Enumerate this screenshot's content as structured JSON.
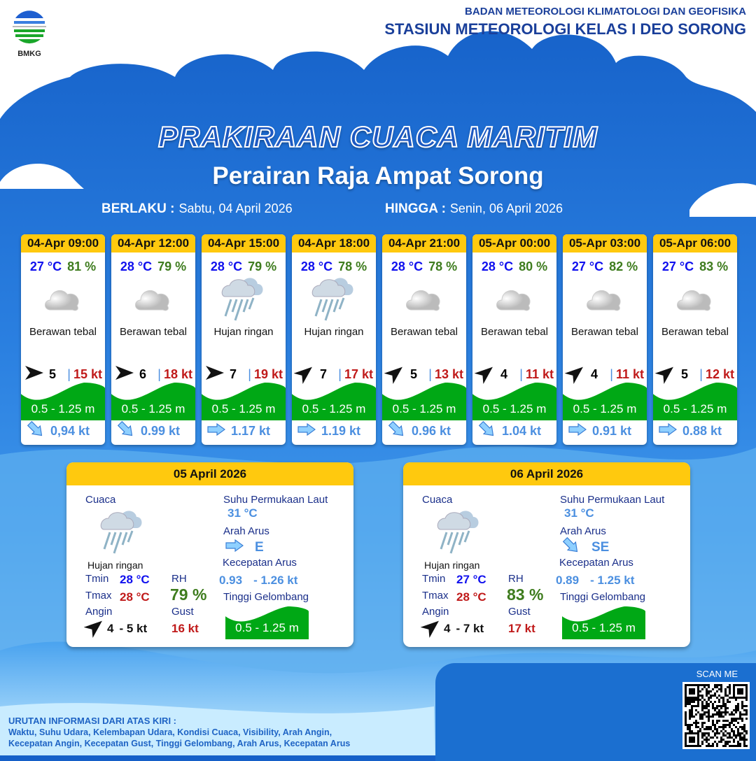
{
  "header": {
    "logo_text": "BMKG",
    "agency": "BADAN METEOROLOGI KLIMATOLOGI DAN GEOFISIKA",
    "station": "STASIUN METEOROLOGI KELAS I DEO SORONG"
  },
  "title": "PRAKIRAAN CUACA MARITIM",
  "subtitle": "Perairan Raja Ampat Sorong",
  "validity": {
    "from_label": "BERLAKU :",
    "from": "Sabtu, 04 April 2026",
    "to_label": "HINGGA :",
    "to": "Senin, 06 April 2026"
  },
  "colors": {
    "header_yellow": "#ffc90e",
    "temp": "#1010ee",
    "rh": "#3e7c1e",
    "gust": "#c01a1a",
    "wave": "#00a815",
    "current": "#4b8fe0"
  },
  "forecasts": [
    {
      "time": "04-Apr 09:00",
      "temp": "27 °C",
      "rh": "81 %",
      "icon": "cloudy-icon",
      "weather": "Berawan tebal",
      "wind_icon": "arrow-east",
      "wind": "5",
      "gust": "15 kt",
      "wave": "0.5 - 1.25 m",
      "current_icon": "arrow-southeast",
      "current": "0,94 kt"
    },
    {
      "time": "04-Apr 12:00",
      "temp": "28 °C",
      "rh": "79 %",
      "icon": "cloudy-icon",
      "weather": "Berawan tebal",
      "wind_icon": "arrow-east",
      "wind": "6",
      "gust": "18 kt",
      "wave": "0.5 - 1.25 m",
      "current_icon": "arrow-southeast",
      "current": "0.99 kt"
    },
    {
      "time": "04-Apr 15:00",
      "temp": "28 °C",
      "rh": "79 %",
      "icon": "rain-icon",
      "weather": "Hujan ringan",
      "wind_icon": "arrow-east",
      "wind": "7",
      "gust": "19 kt",
      "wave": "0.5 - 1.25 m",
      "current_icon": "arrow-east",
      "current": "1.17 kt"
    },
    {
      "time": "04-Apr 18:00",
      "temp": "28 °C",
      "rh": "78 %",
      "icon": "rain-icon",
      "weather": "Hujan ringan",
      "wind_icon": "arrow-northeast",
      "wind": "7",
      "gust": "17 kt",
      "wave": "0.5 - 1.25 m",
      "current_icon": "arrow-east",
      "current": "1.19 kt"
    },
    {
      "time": "04-Apr 21:00",
      "temp": "28 °C",
      "rh": "78 %",
      "icon": "cloudy-icon",
      "weather": "Berawan tebal",
      "wind_icon": "arrow-northeast",
      "wind": "5",
      "gust": "13 kt",
      "wave": "0.5 - 1.25 m",
      "current_icon": "arrow-southeast",
      "current": "0.96 kt"
    },
    {
      "time": "05-Apr 00:00",
      "temp": "28 °C",
      "rh": "80 %",
      "icon": "cloudy-icon",
      "weather": "Berawan tebal",
      "wind_icon": "arrow-northeast",
      "wind": "4",
      "gust": "11 kt",
      "wave": "0.5 - 1.25 m",
      "current_icon": "arrow-southeast",
      "current": "1.04 kt"
    },
    {
      "time": "05-Apr 03:00",
      "temp": "27 °C",
      "rh": "82 %",
      "icon": "cloudy-icon",
      "weather": "Berawan tebal",
      "wind_icon": "arrow-northeast",
      "wind": "4",
      "gust": "11 kt",
      "wave": "0.5 - 1.25 m",
      "current_icon": "arrow-east",
      "current": "0.91 kt"
    },
    {
      "time": "05-Apr 06:00",
      "temp": "27 °C",
      "rh": "83 %",
      "icon": "cloudy-icon",
      "weather": "Berawan tebal",
      "wind_icon": "arrow-northeast",
      "wind": "5",
      "gust": "12 kt",
      "wave": "0.5 - 1.25 m",
      "current_icon": "arrow-east",
      "current": "0.88 kt"
    }
  ],
  "labels": {
    "cuaca": "Cuaca",
    "sst": "Suhu Permukaan Laut",
    "arah_arus": "Arah Arus",
    "kec_arus": "Kecepatan Arus",
    "tinggi": "Tinggi Gelombang",
    "tmin": "Tmin",
    "tmax": "Tmax",
    "rh": "RH",
    "angin": "Angin",
    "gust": "Gust"
  },
  "daily": [
    {
      "date": "05 April 2026",
      "weather": "Hujan ringan",
      "icon": "rain-icon",
      "sst": "31 °C",
      "current_dir": "E",
      "current_icon": "arrow-east",
      "current_from": "0.93",
      "current_to": "- 1.26 kt",
      "tmin": "28 °C",
      "tmax": "28 °C",
      "rh": "79 %",
      "wind_icon": "arrow-northeast",
      "wind_from": "4",
      "wind_to": "- 5 kt",
      "gust": "16 kt",
      "wave": "0.5 - 1.25 m"
    },
    {
      "date": "06 April 2026",
      "weather": "Hujan ringan",
      "icon": "rain-icon",
      "sst": "31 °C",
      "current_dir": "SE",
      "current_icon": "arrow-southeast",
      "current_from": "0.89",
      "current_to": "- 1.25 kt",
      "tmin": "27 °C",
      "tmax": "28 °C",
      "rh": "83 %",
      "wind_icon": "arrow-northeast",
      "wind_from": "4",
      "wind_to": "- 7 kt",
      "gust": "17 kt",
      "wave": "0.5 - 1.25 m"
    }
  ],
  "footer": {
    "heading": "URUTAN INFORMASI DARI ATAS KIRI :",
    "line1": "Waktu, Suhu Udara, Kelembapan Udara, Kondisi Cuaca, Visibility, Arah Angin,",
    "line2": "Kecepatan Angin, Kecepatan Gust, Tinggi Gelombang, Arah Arus, Kecepatan Arus",
    "scan": "SCAN ME"
  }
}
